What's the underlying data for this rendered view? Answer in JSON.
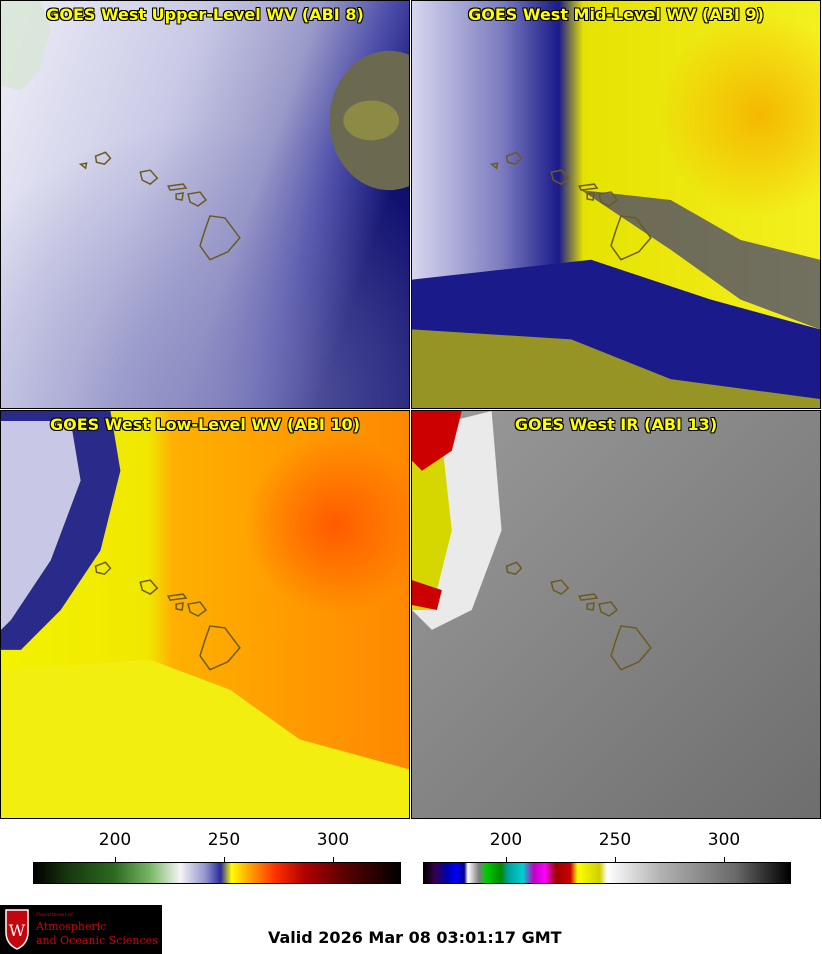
{
  "panels": [
    {
      "title": "GOES West Upper-Level WV (ABI 8)"
    },
    {
      "title": "GOES West Mid-Level WV (ABI 9)"
    },
    {
      "title": "GOES West Low-Level WV (ABI 10)"
    },
    {
      "title": "GOES West IR (ABI 13)"
    }
  ],
  "colorbars": {
    "wv": {
      "ticks": [
        "200",
        "250",
        "300"
      ]
    },
    "ir": {
      "ticks": [
        "200",
        "250",
        "300"
      ]
    }
  },
  "logo": {
    "dept_line": "Department of",
    "line1": "Atmospheric",
    "line2": "and Oceanic Sciences",
    "shield_letter": "W"
  },
  "valid_time": "Valid 2026 Mar 08 03:01:17 GMT",
  "colors": {
    "title_yellow": "#ffff00",
    "island_outline": "#6b5a1e"
  }
}
